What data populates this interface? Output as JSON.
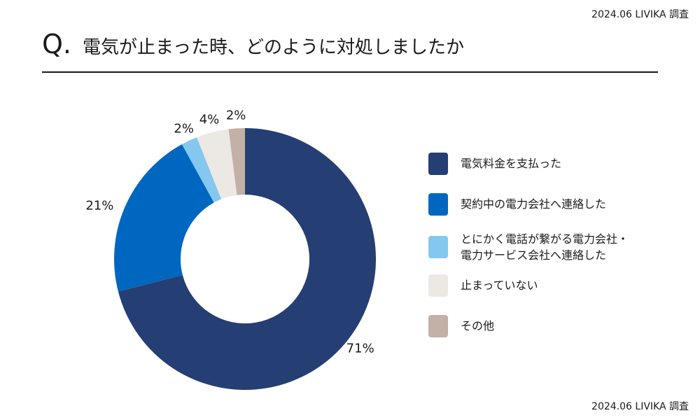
{
  "source": "2024.06 LIVIKA 調査",
  "question_mark": "Q.",
  "title": "電気が止まった時、どのように対処しましたか",
  "chart_data": {
    "type": "pie",
    "donut": true,
    "categories": [
      "電気料金を支払った",
      "契約中の電力会社へ連絡した",
      "とにかく電話が繋がる電力会社・\n電力サービス会社へ連絡した",
      "止まっていない",
      "その他"
    ],
    "values": [
      71,
      21,
      2,
      4,
      2
    ],
    "data_labels": [
      "71%",
      "21%",
      "2%",
      "4%",
      "2%"
    ],
    "colors": [
      "#253f74",
      "#0067c0",
      "#84c8f0",
      "#ece8e4",
      "#c3b0a6"
    ],
    "legend_position": "right"
  }
}
